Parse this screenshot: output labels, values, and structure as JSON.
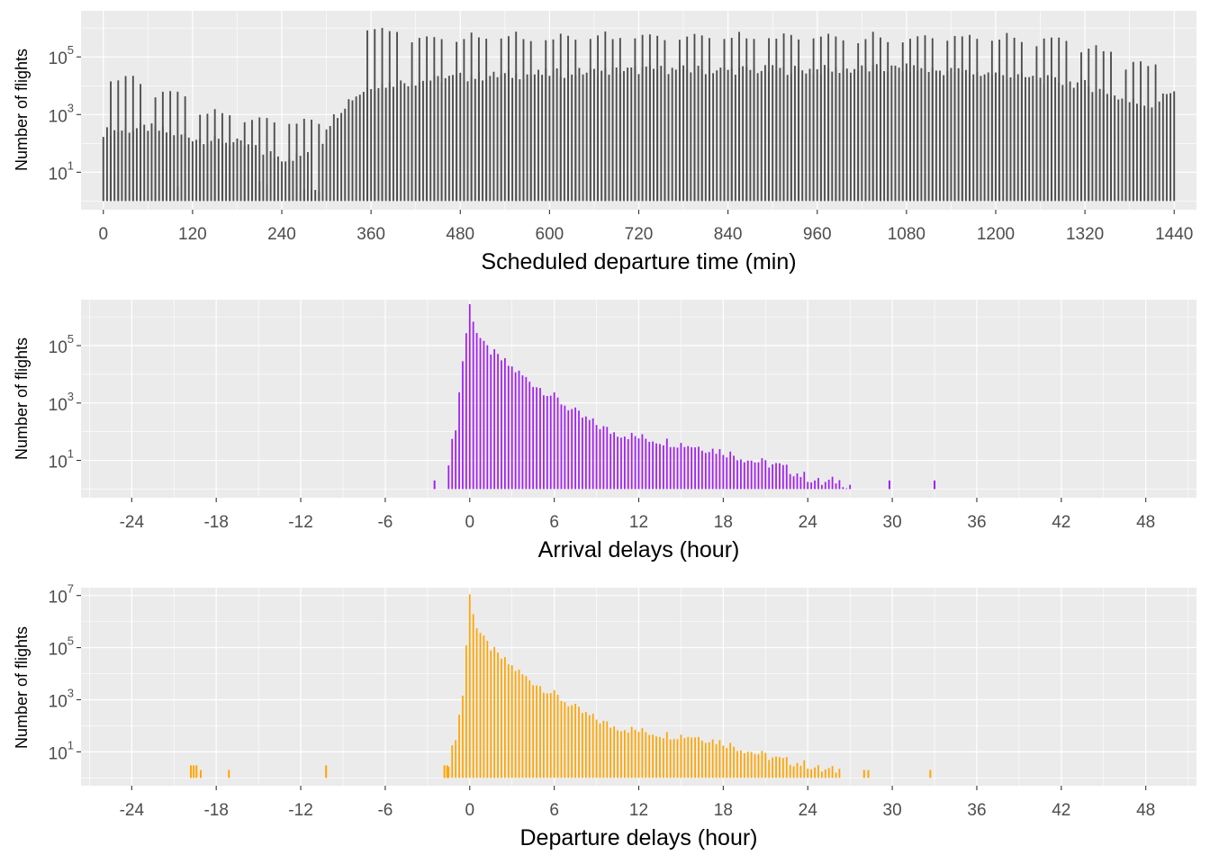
{
  "chart_data": [
    {
      "type": "bar",
      "title": "",
      "xlabel": "Scheduled departure time (min)",
      "ylabel": "Number of flights",
      "yscale": "log10",
      "xlim": [
        -30,
        1470
      ],
      "ylim_log10": [
        -0.3,
        6.6
      ],
      "xticks": [
        0,
        120,
        240,
        360,
        480,
        600,
        720,
        840,
        960,
        1080,
        1200,
        1320,
        1440
      ],
      "yticks": [
        {
          "base": "10",
          "exp": "1",
          "log10": 1
        },
        {
          "base": "10",
          "exp": "3",
          "log10": 3
        },
        {
          "base": "10",
          "exp": "5",
          "log10": 5
        }
      ],
      "bar_color": "#4d4d4d",
      "bar_step": 5,
      "profile_points": [
        [
          0,
          2.4
        ],
        [
          60,
          2.55
        ],
        [
          120,
          2.2
        ],
        [
          180,
          2.0
        ],
        [
          240,
          1.5
        ],
        [
          290,
          1.6
        ],
        [
          300,
          2.6
        ],
        [
          330,
          3.5
        ],
        [
          360,
          4.0
        ],
        [
          480,
          4.3
        ],
        [
          720,
          4.55
        ],
        [
          960,
          4.55
        ],
        [
          1080,
          4.6
        ],
        [
          1200,
          4.4
        ],
        [
          1320,
          4.05
        ],
        [
          1380,
          3.45
        ],
        [
          1410,
          3.3
        ],
        [
          1440,
          3.9
        ]
      ],
      "spikes": [
        {
          "x": 30,
          "log10": 4.5
        },
        {
          "x": 90,
          "log10": 4.0
        },
        {
          "x": 150,
          "log10": 3.3
        },
        {
          "x": 210,
          "log10": 3.0
        },
        {
          "x": 270,
          "log10": 3.0
        },
        {
          "x": 375,
          "log10": 6.2
        },
        {
          "x": 435,
          "log10": 5.9
        },
        {
          "x": 495,
          "log10": 5.9
        },
        {
          "x": 555,
          "log10": 5.9
        },
        {
          "x": 615,
          "log10": 5.9
        },
        {
          "x": 675,
          "log10": 5.9
        },
        {
          "x": 735,
          "log10": 5.9
        },
        {
          "x": 795,
          "log10": 5.9
        },
        {
          "x": 855,
          "log10": 5.9
        },
        {
          "x": 915,
          "log10": 5.9
        },
        {
          "x": 975,
          "log10": 5.9
        },
        {
          "x": 1035,
          "log10": 5.9
        },
        {
          "x": 1095,
          "log10": 5.9
        },
        {
          "x": 1155,
          "log10": 5.9
        },
        {
          "x": 1215,
          "log10": 5.9
        },
        {
          "x": 1275,
          "log10": 5.8
        },
        {
          "x": 1335,
          "log10": 5.5
        },
        {
          "x": 1395,
          "log10": 5.0
        }
      ]
    },
    {
      "type": "bar",
      "title": "",
      "xlabel": "Arrival delays (hour)",
      "ylabel": "Number of flights",
      "yscale": "log10",
      "xlim": [
        -27.6,
        51.6
      ],
      "ylim_log10": [
        -0.3,
        6.6
      ],
      "xticks": [
        -24,
        -18,
        -12,
        -6,
        0,
        6,
        12,
        18,
        24,
        30,
        36,
        42,
        48
      ],
      "yticks": [
        {
          "base": "10",
          "exp": "1",
          "log10": 1
        },
        {
          "base": "10",
          "exp": "3",
          "log10": 3
        },
        {
          "base": "10",
          "exp": "5",
          "log10": 5
        }
      ],
      "bar_color": "#a020f0",
      "bar_step": 0.25,
      "profile_points": [
        [
          -2.5,
          0.3
        ],
        [
          -1.5,
          1.0
        ],
        [
          -1.0,
          2.2
        ],
        [
          -0.5,
          4.5
        ],
        [
          0,
          6.4
        ],
        [
          0.5,
          5.5
        ],
        [
          1,
          5.0
        ],
        [
          2,
          4.6
        ],
        [
          4,
          3.85
        ],
        [
          6,
          3.2
        ],
        [
          8,
          2.5
        ],
        [
          10,
          2.0
        ],
        [
          12,
          1.8
        ],
        [
          14,
          1.65
        ],
        [
          16,
          1.5
        ],
        [
          18,
          1.3
        ],
        [
          20,
          1.0
        ],
        [
          22,
          0.8
        ],
        [
          24,
          0.4
        ],
        [
          25,
          0.2
        ],
        [
          26,
          0.3
        ],
        [
          27,
          0.15
        ]
      ],
      "profile_range": [
        -1.5,
        27.2
      ],
      "extra_bars": [
        {
          "x": -2.5,
          "log10": 0.3
        },
        {
          "x": 29.8,
          "log10": 0.3
        },
        {
          "x": 33.0,
          "log10": 0.3
        }
      ]
    },
    {
      "type": "bar",
      "title": "",
      "xlabel": "Departure delays (hour)",
      "ylabel": "Number of flights",
      "yscale": "log10",
      "xlim": [
        -27.6,
        51.6
      ],
      "ylim_log10": [
        -0.3,
        7.3
      ],
      "xticks": [
        -24,
        -18,
        -12,
        -6,
        0,
        6,
        12,
        18,
        24,
        30,
        36,
        42,
        48
      ],
      "yticks": [
        {
          "base": "10",
          "exp": "1",
          "log10": 1
        },
        {
          "base": "10",
          "exp": "3",
          "log10": 3
        },
        {
          "base": "10",
          "exp": "5",
          "log10": 5
        },
        {
          "base": "10",
          "exp": "7",
          "log10": 7
        }
      ],
      "bar_color": "#ffa500",
      "bar_step": 0.25,
      "profile_points": [
        [
          -1.5,
          0.6
        ],
        [
          -1.0,
          1.6
        ],
        [
          -0.5,
          3.2
        ],
        [
          0,
          7.0
        ],
        [
          0.5,
          5.8
        ],
        [
          1,
          5.3
        ],
        [
          2,
          4.7
        ],
        [
          4,
          3.85
        ],
        [
          6,
          3.2
        ],
        [
          8,
          2.5
        ],
        [
          10,
          2.0
        ],
        [
          12,
          1.8
        ],
        [
          14,
          1.65
        ],
        [
          16,
          1.6
        ],
        [
          18,
          1.35
        ],
        [
          20,
          1.0
        ],
        [
          22,
          0.7
        ],
        [
          24,
          0.5
        ],
        [
          25,
          0.3
        ],
        [
          26,
          0.3
        ]
      ],
      "profile_range": [
        -1.5,
        26.3
      ],
      "extra_bars": [
        {
          "x": -19.8,
          "log10": 0.48
        },
        {
          "x": -19.6,
          "log10": 0.48
        },
        {
          "x": -19.4,
          "log10": 0.48
        },
        {
          "x": -19.1,
          "log10": 0.3
        },
        {
          "x": -17.1,
          "log10": 0.3
        },
        {
          "x": -10.2,
          "log10": 0.48
        },
        {
          "x": -1.8,
          "log10": 0.48
        },
        {
          "x": -1.6,
          "log10": 0.48
        },
        {
          "x": 28.0,
          "log10": 0.3
        },
        {
          "x": 28.3,
          "log10": 0.3
        },
        {
          "x": 32.7,
          "log10": 0.3
        }
      ]
    }
  ]
}
